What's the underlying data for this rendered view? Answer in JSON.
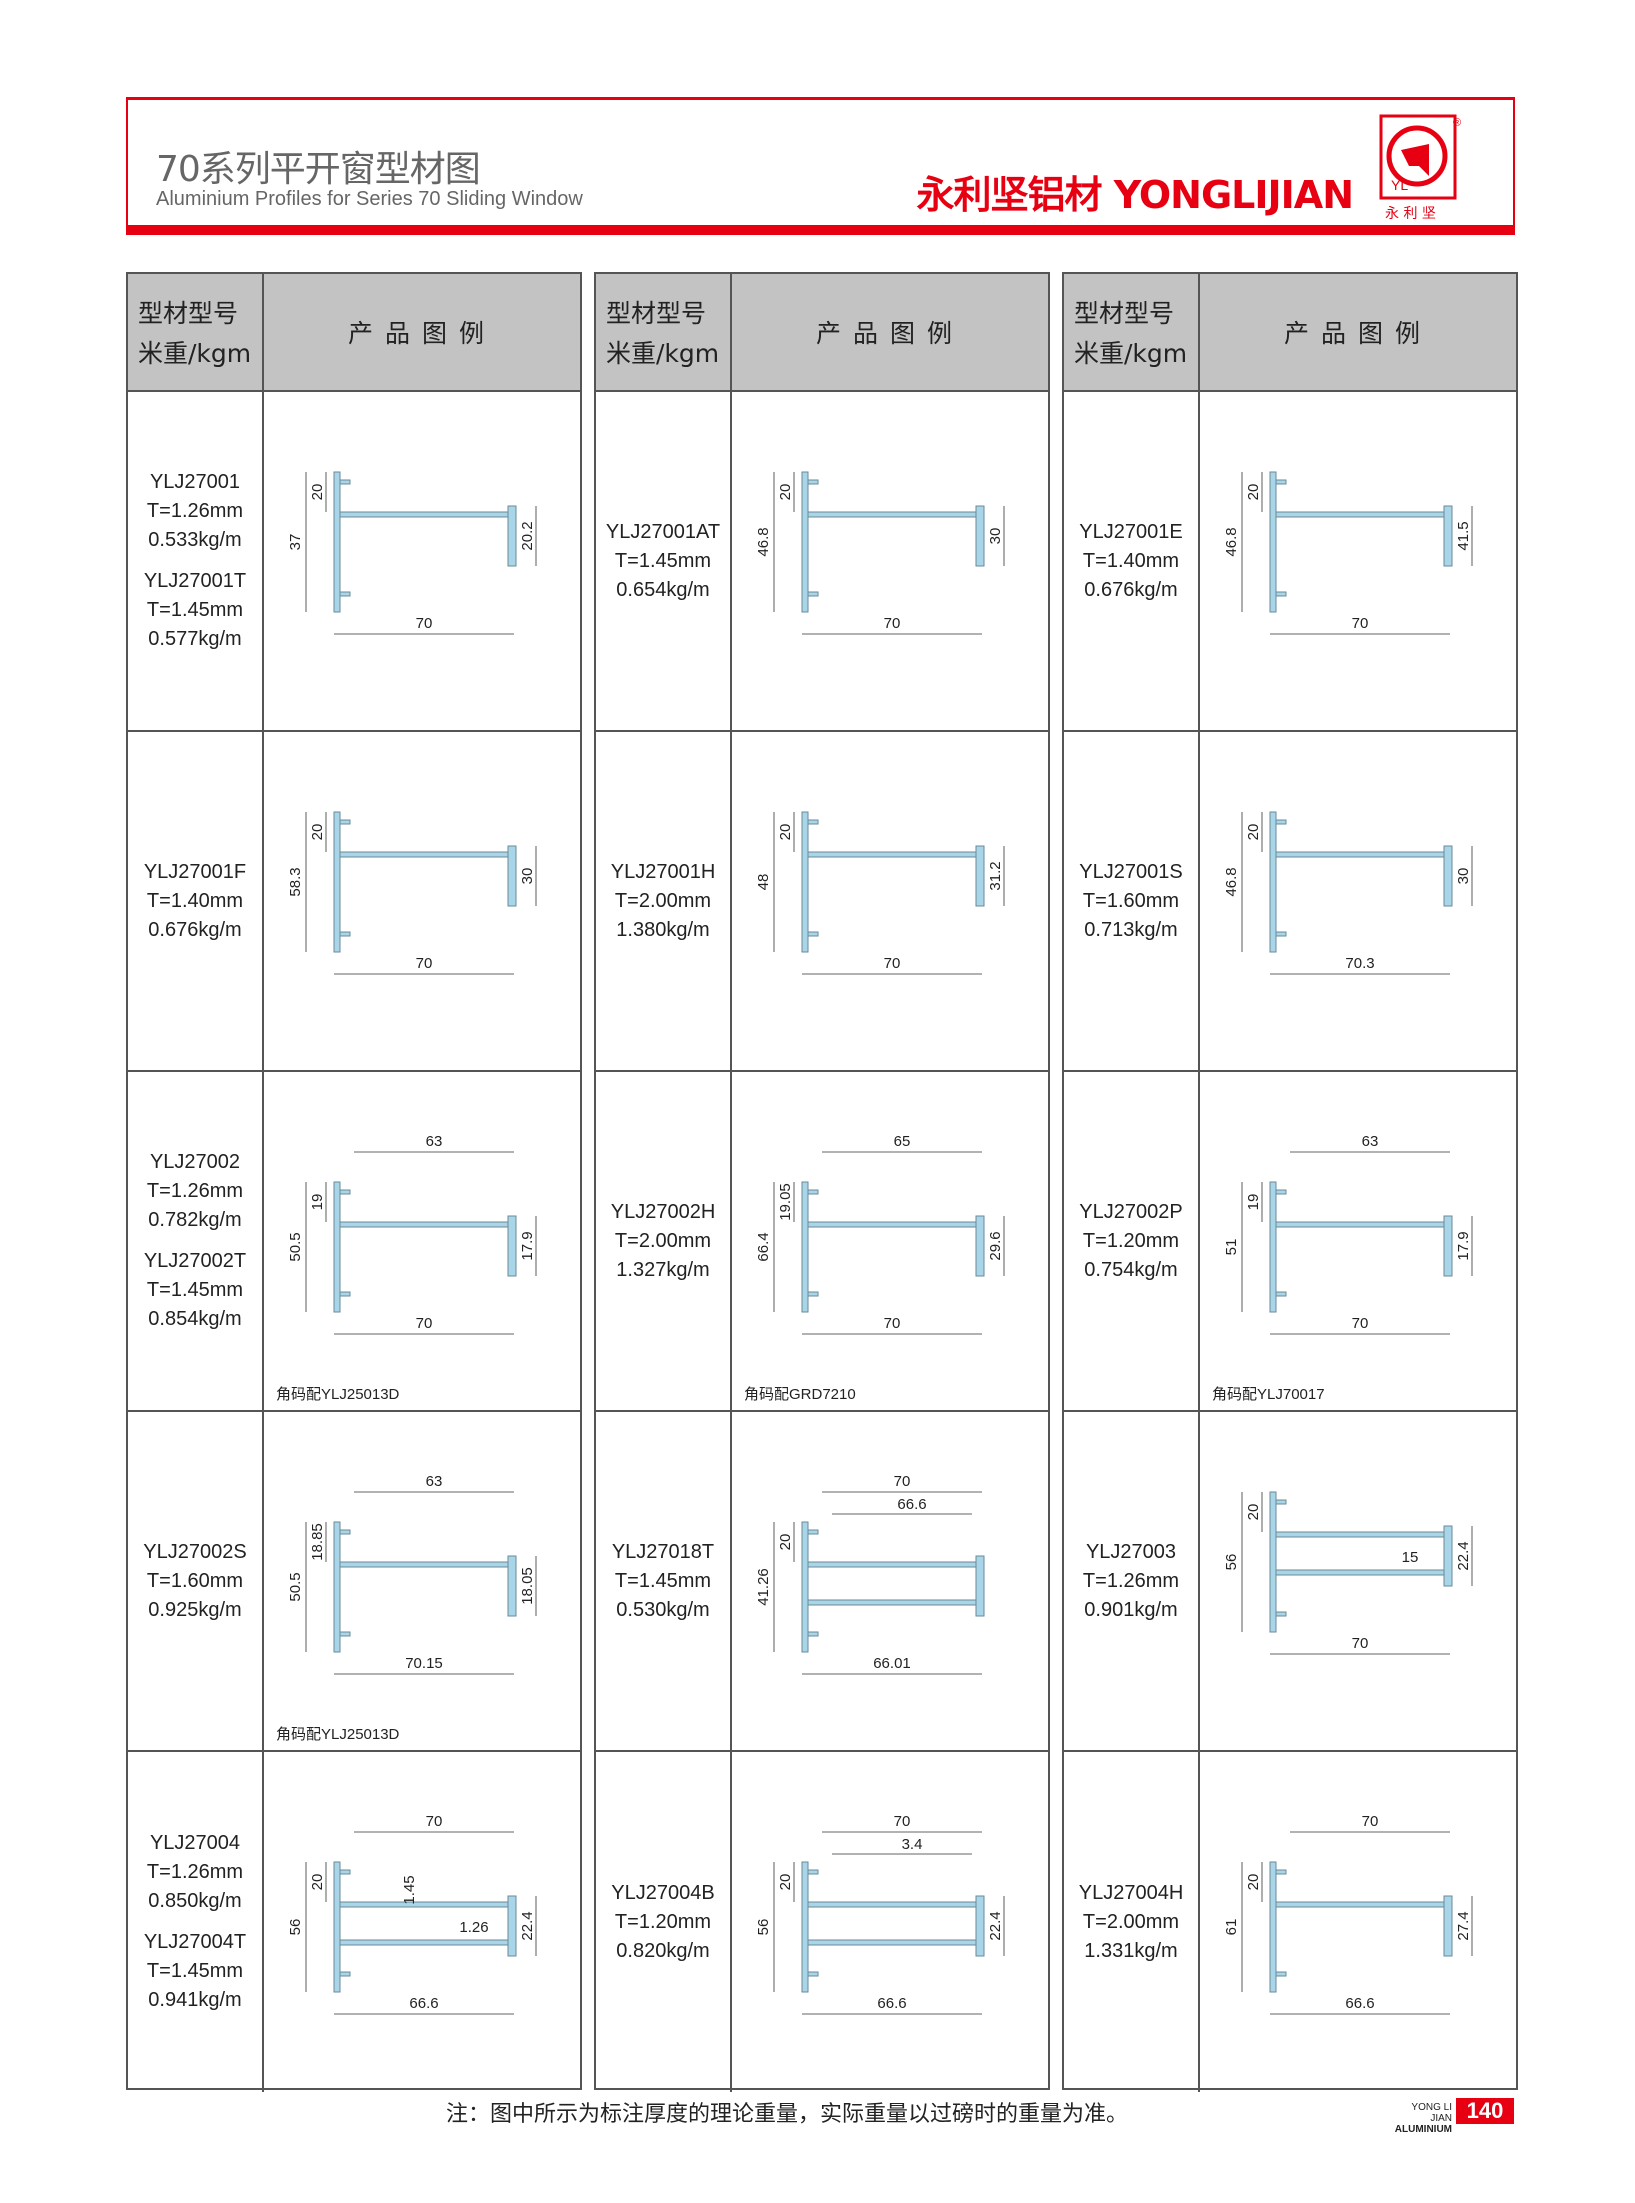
{
  "header": {
    "title_cn": "70系列平开窗型材图",
    "title_en": "Aluminium Profiles for Series 70 Sliding Window",
    "brand": "永利坚铝材 YONGLIJIAN",
    "logo_text": "永利坚",
    "logo_letters": "YL",
    "accent": "#e60012"
  },
  "table_header": {
    "col1_line1": "型材型号",
    "col1_line2": "米重/kgm",
    "col2": "产品图例"
  },
  "profile_color": "#a9d5e8",
  "columns": [
    [
      {
        "models": [
          [
            "YLJ27001",
            "T=1.26mm",
            "0.533kg/m"
          ],
          [
            "YLJ27001T",
            "T=1.45mm",
            "0.577kg/m"
          ]
        ],
        "dims": {
          "bottom": "70",
          "left": "37",
          "inner": "20",
          "right": "20.2"
        }
      },
      {
        "models": [
          [
            "YLJ27001F",
            "T=1.40mm",
            "0.676kg/m"
          ]
        ],
        "dims": {
          "bottom": "70",
          "left": "58.3",
          "inner": "20",
          "right": "30"
        }
      },
      {
        "models": [
          [
            "YLJ27002",
            "T=1.26mm",
            "0.782kg/m"
          ],
          [
            "YLJ27002T",
            "T=1.45mm",
            "0.854kg/m"
          ]
        ],
        "dims": {
          "top": "63",
          "bottom": "70",
          "left": "50.5",
          "inner": "19",
          "right": "17.9"
        },
        "note": "角码配YLJ25013D"
      },
      {
        "models": [
          [
            "YLJ27002S",
            "T=1.60mm",
            "0.925kg/m"
          ]
        ],
        "dims": {
          "top": "63",
          "bottom": "70.15",
          "left": "50.5",
          "inner": "18.85",
          "right": "18.05"
        },
        "note": "角码配YLJ25013D"
      },
      {
        "models": [
          [
            "YLJ27004",
            "T=1.26mm",
            "0.850kg/m"
          ],
          [
            "YLJ27004T",
            "T=1.45mm",
            "0.941kg/m"
          ]
        ],
        "dims": {
          "top": "70",
          "bottom": "66.6",
          "left": "56",
          "inner": "20",
          "right": "22.4",
          "mid1": "1.26",
          "mid2": "1.45"
        }
      }
    ],
    [
      {
        "models": [
          [
            "YLJ27001AT",
            "T=1.45mm",
            "0.654kg/m"
          ]
        ],
        "dims": {
          "bottom": "70",
          "left": "46.8",
          "inner": "20",
          "right": "30"
        }
      },
      {
        "models": [
          [
            "YLJ27001H",
            "T=2.00mm",
            "1.380kg/m"
          ]
        ],
        "dims": {
          "bottom": "70",
          "left": "48",
          "inner": "20",
          "right": "31.2"
        }
      },
      {
        "models": [
          [
            "YLJ27002H",
            "T=2.00mm",
            "1.327kg/m"
          ]
        ],
        "dims": {
          "top": "65",
          "bottom": "70",
          "left": "66.4",
          "inner": "19.05",
          "right": "29.6"
        },
        "note": "角码配GRD7210"
      },
      {
        "models": [
          [
            "YLJ27018T",
            "T=1.45mm",
            "0.530kg/m"
          ]
        ],
        "dims": {
          "top": "70",
          "top2": "66.6",
          "bottom": "66.01",
          "left": "41.26",
          "inner": "20"
        }
      },
      {
        "models": [
          [
            "YLJ27004B",
            "T=1.20mm",
            "0.820kg/m"
          ]
        ],
        "dims": {
          "top": "70",
          "top2": "3.4",
          "bottom": "66.6",
          "left": "56",
          "inner": "20",
          "right": "22.4"
        }
      }
    ],
    [
      {
        "models": [
          [
            "YLJ27001E",
            "T=1.40mm",
            "0.676kg/m"
          ]
        ],
        "dims": {
          "bottom": "70",
          "left": "46.8",
          "inner": "20",
          "right": "41.5"
        }
      },
      {
        "models": [
          [
            "YLJ27001S",
            "T=1.60mm",
            "0.713kg/m"
          ]
        ],
        "dims": {
          "bottom": "70.3",
          "left": "46.8",
          "inner": "20",
          "right": "30"
        }
      },
      {
        "models": [
          [
            "YLJ27002P",
            "T=1.20mm",
            "0.754kg/m"
          ]
        ],
        "dims": {
          "top": "63",
          "bottom": "70",
          "left": "51",
          "inner": "19",
          "right": "17.9"
        },
        "note": "角码配YLJ70017"
      },
      {
        "models": [
          [
            "YLJ27003",
            "T=1.26mm",
            "0.901kg/m"
          ]
        ],
        "dims": {
          "bottom": "70",
          "left": "56",
          "inner": "20",
          "right": "22.4",
          "mid1": "15"
        }
      },
      {
        "models": [
          [
            "YLJ27004H",
            "T=2.00mm",
            "1.331kg/m"
          ]
        ],
        "dims": {
          "top": "70",
          "bottom": "66.6",
          "left": "61",
          "inner": "20",
          "right": "27.4"
        }
      }
    ]
  ],
  "footer": {
    "note": "注：图中所示为标注厚度的理论重量，实际重量以过磅时的重量为准。",
    "brand_line1": "YONG LI JIAN",
    "brand_line2": "ALUMINIUM",
    "page": "140"
  }
}
